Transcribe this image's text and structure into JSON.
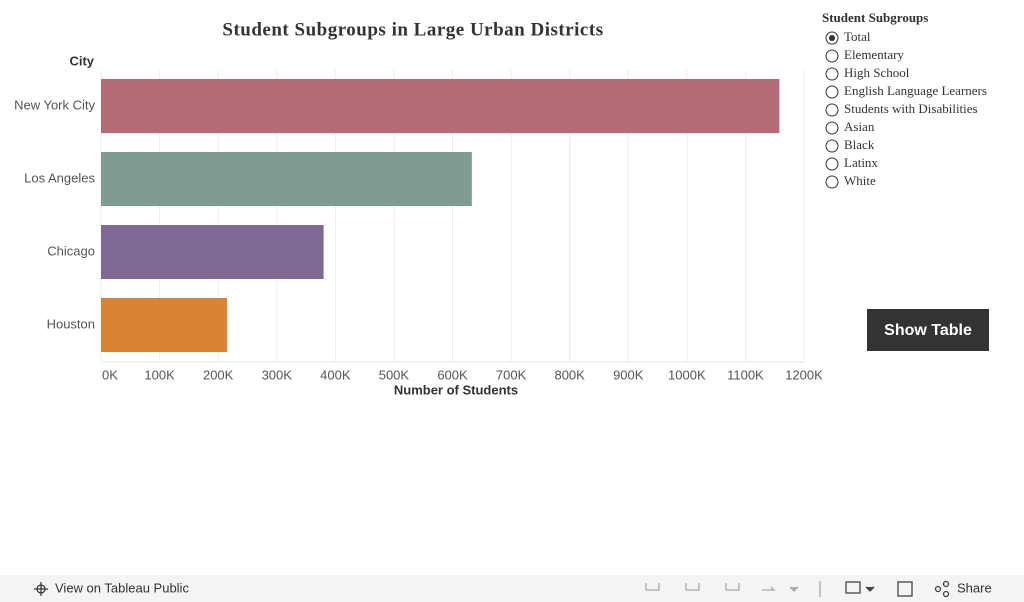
{
  "chart_data": {
    "type": "bar",
    "orientation": "horizontal",
    "title": "Student Subgroups in Large Urban Districts",
    "category_axis_label": "City",
    "x_label": "Number of Students",
    "categories": [
      "New York City",
      "Los Angeles",
      "Chicago",
      "Houston"
    ],
    "values": [
      1158000,
      633000,
      380000,
      215000
    ],
    "colors": [
      "#b76b77",
      "#7f9c90",
      "#7e6a92",
      "#da8333"
    ],
    "xlim": [
      0,
      1200000
    ],
    "xticks": [
      {
        "value": 0,
        "label": "0K"
      },
      {
        "value": 100000,
        "label": "100K"
      },
      {
        "value": 200000,
        "label": "200K"
      },
      {
        "value": 300000,
        "label": "300K"
      },
      {
        "value": 400000,
        "label": "400K"
      },
      {
        "value": 500000,
        "label": "500K"
      },
      {
        "value": 600000,
        "label": "600K"
      },
      {
        "value": 700000,
        "label": "700K"
      },
      {
        "value": 800000,
        "label": "800K"
      },
      {
        "value": 900000,
        "label": "900K"
      },
      {
        "value": 1000000,
        "label": "1000K"
      },
      {
        "value": 1100000,
        "label": "1100K"
      },
      {
        "value": 1200000,
        "label": "1200K"
      }
    ],
    "grid": true
  },
  "filter": {
    "title": "Student Subgroups",
    "options": [
      "Total",
      "Elementary",
      "High School",
      "English Language Learners",
      "Students with Disabilities",
      "Asian",
      "Black",
      "Latinx",
      "White"
    ],
    "selected": 0
  },
  "button": {
    "label": "Show Table"
  },
  "toolbar": {
    "left": "View on Tableau Public",
    "share": "Share"
  }
}
